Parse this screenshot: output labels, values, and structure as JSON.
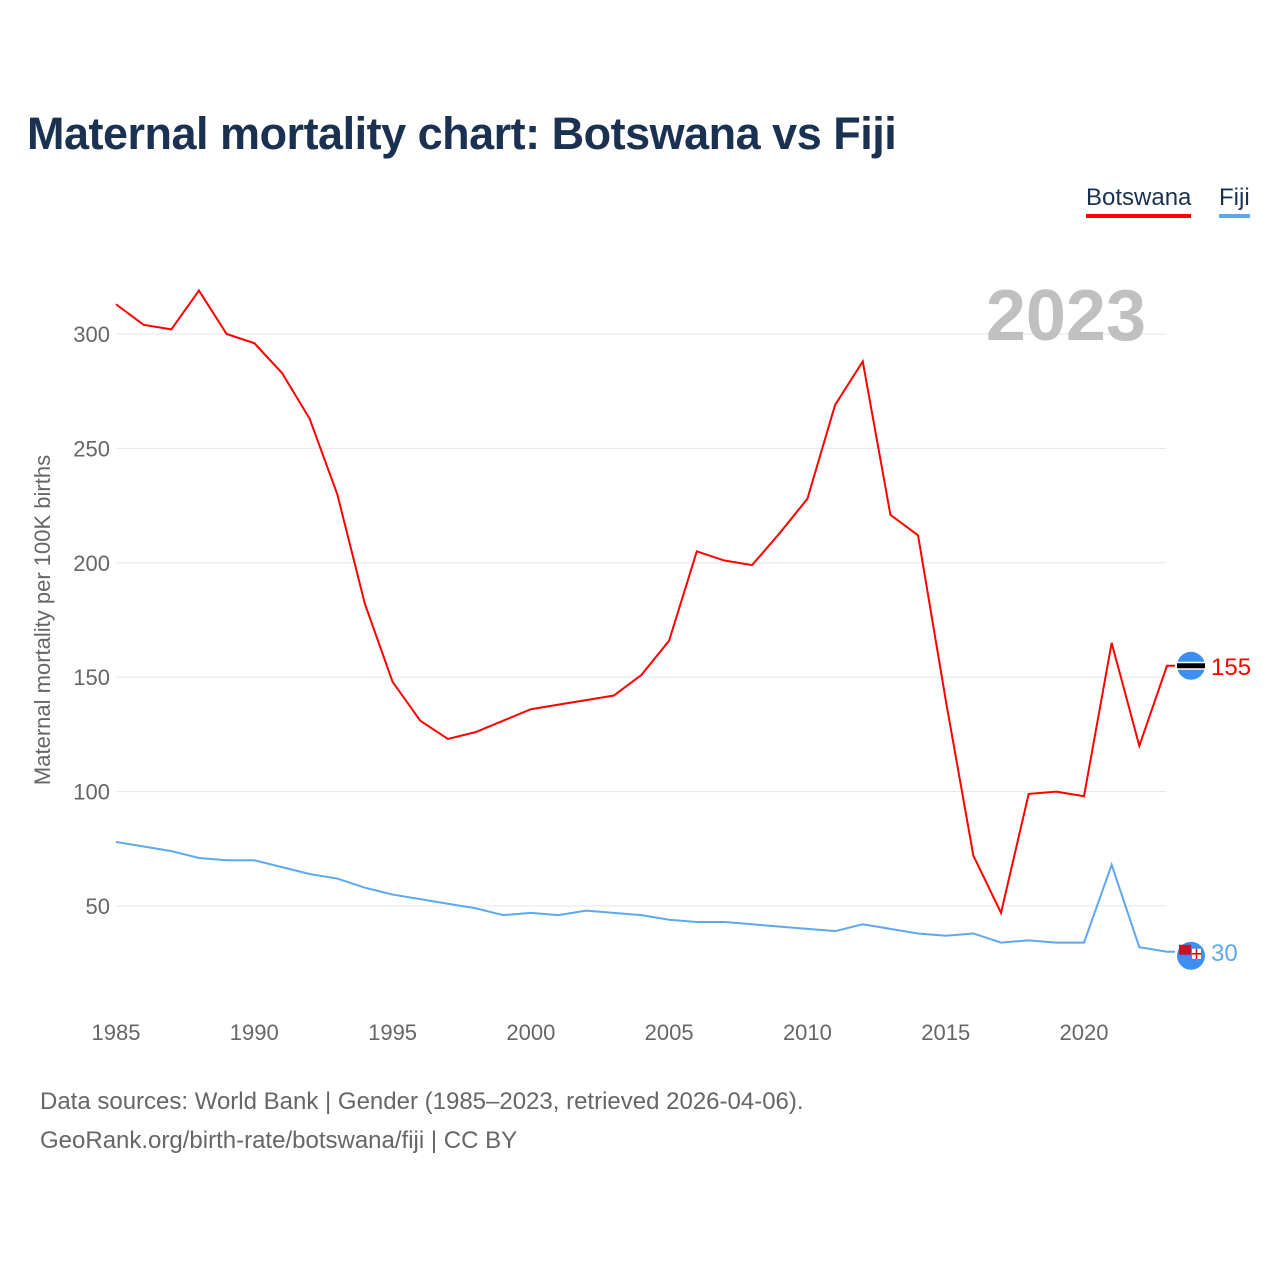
{
  "title": "Maternal mortality chart: Botswana vs Fiji",
  "legend": [
    {
      "label": "Botswana",
      "color": "#ff0000"
    },
    {
      "label": "Fiji",
      "color": "#5da8ee"
    }
  ],
  "footer": {
    "line1": "Data sources: World Bank | Gender (1985–2023, retrieved 2026-04-06).",
    "line2": "GeoRank.org/birth-rate/botswana/fiji | CC BY"
  },
  "chart_data": {
    "type": "line",
    "title": "Maternal mortality chart: Botswana vs Fiji",
    "year_label": "2023",
    "xlabel": "",
    "ylabel": "Maternal mortality per 100K births",
    "xlim": [
      1985,
      2023
    ],
    "ylim": [
      0,
      320
    ],
    "xticks": [
      1985,
      1990,
      1995,
      2000,
      2005,
      2010,
      2015,
      2020
    ],
    "yticks": [
      50,
      100,
      150,
      200,
      250,
      300
    ],
    "grid": true,
    "legend_position": "top-right",
    "x": [
      1985,
      1986,
      1987,
      1988,
      1989,
      1990,
      1991,
      1992,
      1993,
      1994,
      1995,
      1996,
      1997,
      1998,
      1999,
      2000,
      2001,
      2002,
      2003,
      2004,
      2005,
      2006,
      2007,
      2008,
      2009,
      2010,
      2011,
      2012,
      2013,
      2014,
      2015,
      2016,
      2017,
      2018,
      2019,
      2020,
      2021,
      2022,
      2023
    ],
    "series": [
      {
        "name": "Botswana",
        "color": "#ff0000",
        "end_label": "155",
        "values": [
          313,
          304,
          302,
          319,
          300,
          296,
          283,
          263,
          230,
          182,
          148,
          131,
          123,
          126,
          131,
          136,
          138,
          140,
          142,
          151,
          166,
          205,
          201,
          199,
          213,
          228,
          269,
          288,
          221,
          212,
          140,
          72,
          47,
          99,
          100,
          98,
          165,
          120,
          155
        ]
      },
      {
        "name": "Fiji",
        "color": "#5da8ee",
        "end_label": "30",
        "values": [
          78,
          76,
          74,
          71,
          70,
          70,
          67,
          64,
          62,
          58,
          55,
          53,
          51,
          49,
          46,
          47,
          46,
          48,
          47,
          46,
          44,
          43,
          43,
          42,
          41,
          40,
          39,
          42,
          40,
          38,
          37,
          38,
          34,
          35,
          34,
          34,
          68,
          32,
          30
        ]
      }
    ]
  }
}
